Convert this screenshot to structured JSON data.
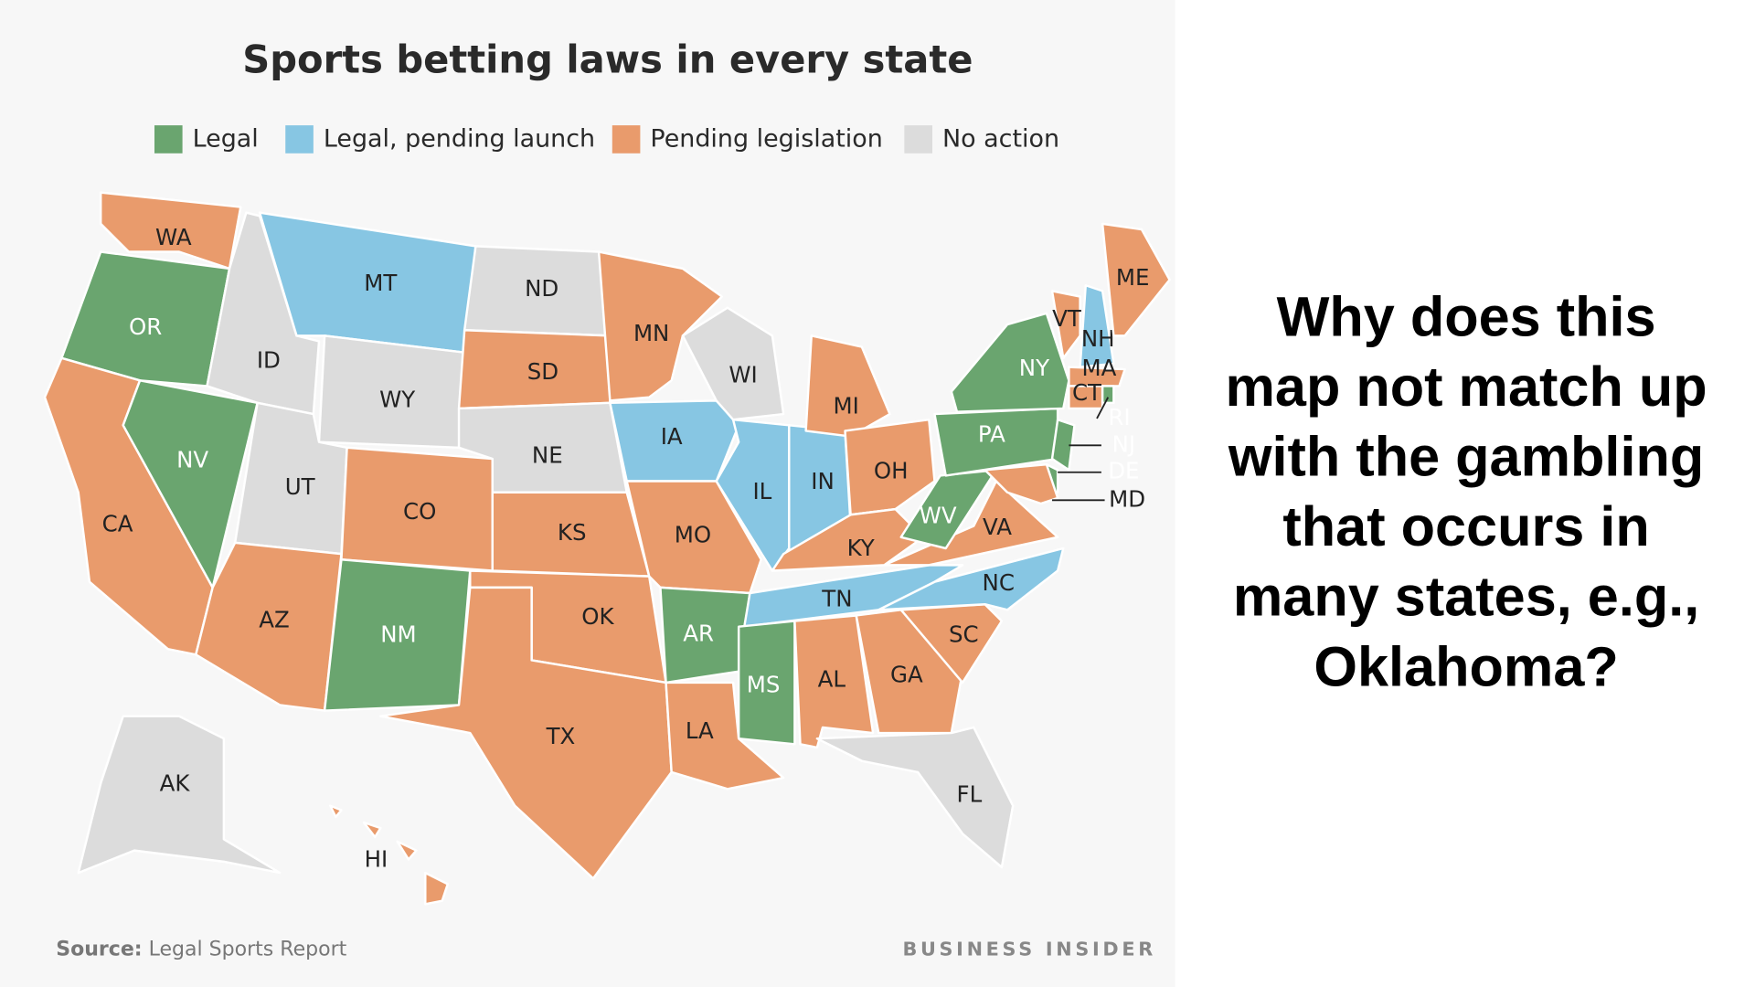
{
  "header": {
    "title": "Sports betting laws in every state"
  },
  "legend": [
    {
      "label": "Legal",
      "color": "#6aa56f"
    },
    {
      "label": "Legal, pending launch",
      "color": "#87c6e3"
    },
    {
      "label": "Pending legislation",
      "color": "#e99b6c"
    },
    {
      "label": "No action",
      "color": "#dcdcdc"
    }
  ],
  "states": [
    {
      "label": "WA",
      "color": "#e99b6c"
    },
    {
      "label": "OR",
      "color": "#6aa56f"
    },
    {
      "label": "CA",
      "color": "#e99b6c"
    },
    {
      "label": "NV",
      "color": "#6aa56f"
    },
    {
      "label": "ID",
      "color": "#dcdcdc"
    },
    {
      "label": "MT",
      "color": "#87c6e3"
    },
    {
      "label": "WY",
      "color": "#dcdcdc"
    },
    {
      "label": "UT",
      "color": "#dcdcdc"
    },
    {
      "label": "AZ",
      "color": "#e99b6c"
    },
    {
      "label": "CO",
      "color": "#e99b6c"
    },
    {
      "label": "NM",
      "color": "#6aa56f"
    },
    {
      "label": "ND",
      "color": "#dcdcdc"
    },
    {
      "label": "SD",
      "color": "#e99b6c"
    },
    {
      "label": "NE",
      "color": "#dcdcdc"
    },
    {
      "label": "KS",
      "color": "#e99b6c"
    },
    {
      "label": "OK",
      "color": "#e99b6c"
    },
    {
      "label": "TX",
      "color": "#e99b6c"
    },
    {
      "label": "MN",
      "color": "#e99b6c"
    },
    {
      "label": "IA",
      "color": "#87c6e3"
    },
    {
      "label": "MO",
      "color": "#e99b6c"
    },
    {
      "label": "AR",
      "color": "#6aa56f"
    },
    {
      "label": "LA",
      "color": "#e99b6c"
    },
    {
      "label": "WI",
      "color": "#dcdcdc"
    },
    {
      "label": "IL",
      "color": "#87c6e3"
    },
    {
      "label": "IN",
      "color": "#87c6e3"
    },
    {
      "label": "MI",
      "color": "#e99b6c"
    },
    {
      "label": "OH",
      "color": "#e99b6c"
    },
    {
      "label": "KY",
      "color": "#e99b6c"
    },
    {
      "label": "TN",
      "color": "#87c6e3"
    },
    {
      "label": "MS",
      "color": "#6aa56f"
    },
    {
      "label": "AL",
      "color": "#e99b6c"
    },
    {
      "label": "GA",
      "color": "#e99b6c"
    },
    {
      "label": "FL",
      "color": "#dcdcdc"
    },
    {
      "label": "SC",
      "color": "#e99b6c"
    },
    {
      "label": "NC",
      "color": "#87c6e3"
    },
    {
      "label": "VA",
      "color": "#e99b6c"
    },
    {
      "label": "WV",
      "color": "#6aa56f"
    },
    {
      "label": "PA",
      "color": "#6aa56f"
    },
    {
      "label": "NY",
      "color": "#6aa56f"
    },
    {
      "label": "VT",
      "color": "#e99b6c"
    },
    {
      "label": "NH",
      "color": "#87c6e3"
    },
    {
      "label": "ME",
      "color": "#e99b6c"
    },
    {
      "label": "MA",
      "color": "#e99b6c"
    },
    {
      "label": "CT",
      "color": "#e99b6c"
    },
    {
      "label": "RI",
      "color": "#6aa56f"
    },
    {
      "label": "NJ",
      "color": "#6aa56f"
    },
    {
      "label": "DE",
      "color": "#6aa56f"
    },
    {
      "label": "MD",
      "color": "#e99b6c"
    },
    {
      "label": "AK",
      "color": "#dcdcdc"
    },
    {
      "label": "HI",
      "color": "#e99b6c"
    }
  ],
  "footer": {
    "source_label": "Source:",
    "source": "Legal Sports Report",
    "brand": "BUSINESS INSIDER"
  },
  "question": {
    "lines": [
      "Why does this",
      "map not match up",
      "with the gambling",
      "that occurs in",
      "many states, e.g.,",
      "Oklahoma?"
    ]
  }
}
